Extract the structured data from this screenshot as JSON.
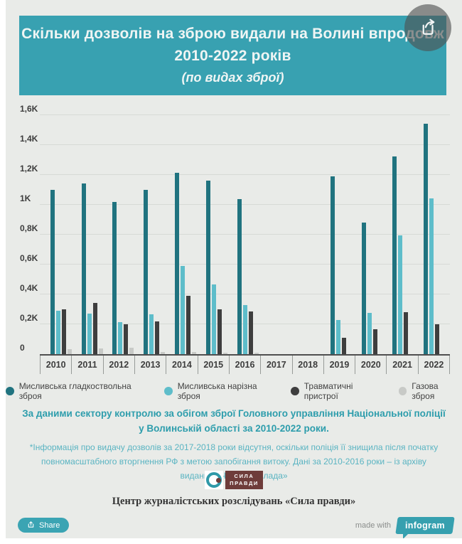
{
  "header": {
    "title_line1": "Скільки дозволів на зброю видали на Волині впродовж",
    "title_line2": "2010-2022 років",
    "subtitle": "(по видах зброї)"
  },
  "icons": {
    "share_overlay": "share-export-icon",
    "share_button": "share-icon"
  },
  "colors": {
    "header_bg": "#38a1b1",
    "canvas_bg": "#e9ebe8",
    "accent_teal": "#2d9dac"
  },
  "chart_data": {
    "type": "bar",
    "title": "Скільки дозволів на зброю видали на Волині впродовж 2010-2022 років (по видах зброї)",
    "xlabel": "",
    "ylabel": "",
    "ylim": [
      0,
      1600
    ],
    "grid": true,
    "legend_position": "bottom",
    "ytick_values": [
      0,
      200,
      400,
      600,
      800,
      1000,
      1200,
      1400,
      1600
    ],
    "ytick_labels": [
      "0",
      "0,2K",
      "0,4K",
      "0,6K",
      "0,8K",
      "1K",
      "1,2K",
      "1,4K",
      "1,6K"
    ],
    "categories": [
      "2010",
      "2011",
      "2012",
      "2013",
      "2014",
      "2015",
      "2016",
      "2017",
      "2018",
      "2019",
      "2020",
      "2021",
      "2022"
    ],
    "series": [
      {
        "name": "Мисливська гладкоствольна зброя",
        "color": "#20737f",
        "values": [
          1100,
          1145,
          1020,
          1100,
          1215,
          1160,
          1040,
          0,
          0,
          1190,
          880,
          1325,
          1545
        ]
      },
      {
        "name": "Мисливська нарізна зброя",
        "color": "#5ebdca",
        "values": [
          290,
          270,
          215,
          265,
          590,
          465,
          330,
          0,
          0,
          230,
          275,
          795,
          1045
        ]
      },
      {
        "name": "Травматичні пристрої",
        "color": "#3e3e3e",
        "values": [
          300,
          345,
          200,
          220,
          390,
          300,
          285,
          0,
          0,
          110,
          165,
          280,
          200
        ]
      },
      {
        "name": "Газова зброя",
        "color": "#c8cac7",
        "values": [
          35,
          40,
          45,
          15,
          15,
          10,
          8,
          0,
          0,
          0,
          0,
          0,
          0
        ]
      }
    ]
  },
  "source": {
    "text": "За даними сектору контролю за обігом зброї Головного управління Національної поліції у Волинській області за 2010-2022 роки."
  },
  "note": {
    "text": "*Інформація про видачу дозволів за 2017-2018 роки відсутня, оскільки поліція її знищила після початку повномасштабного вторгнення РФ з метою запобігання витоку. Дані за 2010-2016 роки – із архіву видання «Четверта влада»"
  },
  "publisher": {
    "logo_line1": "СИЛА",
    "logo_line2": "ПРАВДИ",
    "name": "Центр журналістських розслідувань «Сила правди»"
  },
  "footer": {
    "share_label": "Share",
    "made_with": "made with",
    "brand": "infogram"
  }
}
